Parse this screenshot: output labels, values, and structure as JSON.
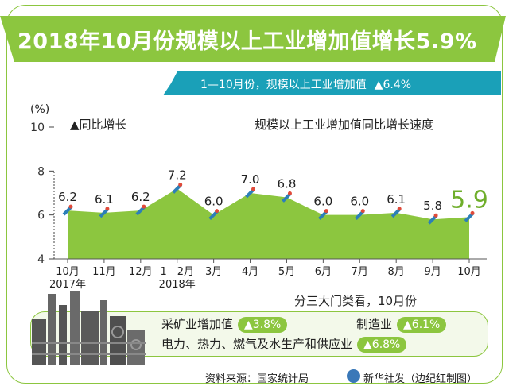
{
  "header": {
    "title": "2018年10月份规模以上工业增加值增长5.9%",
    "subtitle": "1—10月份，规模以上工业增加值",
    "subtitle_value": "▲6.4%"
  },
  "chart_data": {
    "type": "area",
    "title": "规模以上工业增加值同比增长速度",
    "ylabel": "(%)",
    "legend": "▲同比增长",
    "ylim": [
      4,
      10
    ],
    "yticks": [
      "4",
      "6",
      "8",
      "10"
    ],
    "categories": [
      "10月",
      "11月",
      "12月",
      "1—2月",
      "3月",
      "4月",
      "5月",
      "6月",
      "7月",
      "8月",
      "9月",
      "10月"
    ],
    "year_labels": [
      "2017年",
      "2018年"
    ],
    "values": [
      6.2,
      6.1,
      6.2,
      7.2,
      6.0,
      7.0,
      6.8,
      6.0,
      6.0,
      6.1,
      5.8,
      5.9
    ],
    "value_labels": [
      "6.2",
      "6.1",
      "6.2",
      "7.2",
      "6.0",
      "7.0",
      "6.8",
      "6.0",
      "6.0",
      "6.1",
      "5.8",
      "5.9"
    ],
    "fill_color": "#8cc63f"
  },
  "sectors": {
    "heading": "分三大门类看，10月份",
    "mining_label": "采矿业增加值",
    "mining_value": "▲3.8%",
    "manufacturing_label": "制造业",
    "manufacturing_value": "▲6.1%",
    "utilities_label": "电力、热力、燃气及水生产和供应业",
    "utilities_value": "▲6.8%"
  },
  "footer": {
    "source": "资料来源：国家统计局",
    "credit": "新华社发（边纪红制图）"
  },
  "colors": {
    "green": "#8cc63f",
    "teal": "#1aa0b8"
  }
}
